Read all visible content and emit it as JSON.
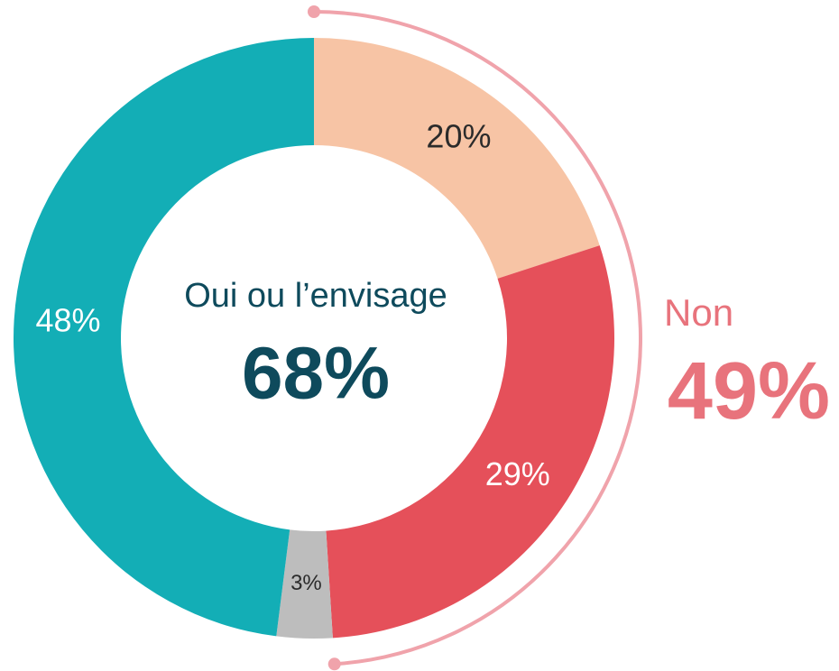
{
  "chart_data": {
    "type": "donut",
    "values": [
      20,
      29,
      3,
      48
    ],
    "value_labels": [
      "20%",
      "29%",
      "3%",
      "48%"
    ],
    "colors": [
      "#f7c4a5",
      "#e5505a",
      "#bdbdbd",
      "#13aeb6"
    ],
    "label_colors": [
      "#2b2b2b",
      "#ffffff",
      "#2b2b2b",
      "#ffffff"
    ],
    "annotations": [
      {
        "text": "Oui ou l’envisage",
        "figure": "68%",
        "color": "#0e4a5c"
      },
      {
        "text": "Non",
        "figure": "49%",
        "color": "#e8737c",
        "bracket_color": "#f0a3ab"
      }
    ]
  }
}
